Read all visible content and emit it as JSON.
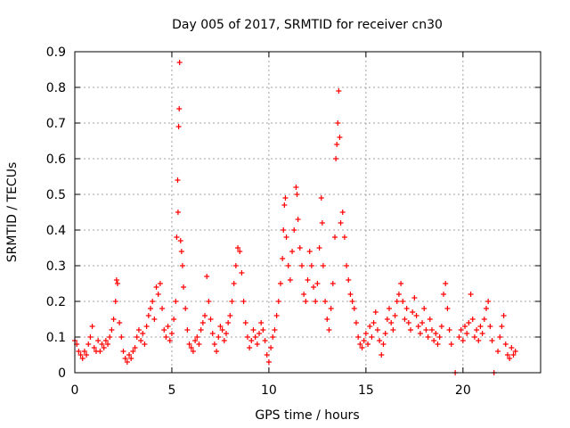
{
  "chart_data": {
    "type": "scatter",
    "title": "Day 005 of 2017, SRMTID for receiver cn30",
    "xlabel": "GPS time / hours",
    "ylabel": "SRMTID / TECUs",
    "xlim": [
      0,
      24
    ],
    "ylim": [
      0,
      0.9
    ],
    "x_ticks": [
      0,
      5,
      10,
      15,
      20
    ],
    "x_tick_labels": [
      "0",
      "5",
      "10",
      "15",
      "20"
    ],
    "y_ticks": [
      0,
      0.1,
      0.2,
      0.3,
      0.4,
      0.5,
      0.6,
      0.7,
      0.8,
      0.9
    ],
    "y_tick_labels": [
      "0",
      "0.1",
      "0.2",
      "0.3",
      "0.4",
      "0.5",
      "0.6",
      "0.7",
      "0.8",
      "0.9"
    ],
    "grid": true,
    "marker": "+",
    "color": "#ff0000",
    "series": [
      {
        "name": "SRMTID",
        "points": [
          [
            0.0,
            0.09
          ],
          [
            0.1,
            0.08
          ],
          [
            0.2,
            0.06
          ],
          [
            0.3,
            0.05
          ],
          [
            0.4,
            0.04
          ],
          [
            0.5,
            0.06
          ],
          [
            0.6,
            0.05
          ],
          [
            0.7,
            0.08
          ],
          [
            0.8,
            0.1
          ],
          [
            0.9,
            0.13
          ],
          [
            1.0,
            0.07
          ],
          [
            1.1,
            0.06
          ],
          [
            1.2,
            0.09
          ],
          [
            1.3,
            0.06
          ],
          [
            1.4,
            0.08
          ],
          [
            1.5,
            0.07
          ],
          [
            1.6,
            0.09
          ],
          [
            1.7,
            0.08
          ],
          [
            1.8,
            0.1
          ],
          [
            1.9,
            0.12
          ],
          [
            2.0,
            0.15
          ],
          [
            2.1,
            0.2
          ],
          [
            2.15,
            0.26
          ],
          [
            2.2,
            0.25
          ],
          [
            2.3,
            0.14
          ],
          [
            2.4,
            0.1
          ],
          [
            2.5,
            0.06
          ],
          [
            2.6,
            0.04
          ],
          [
            2.7,
            0.03
          ],
          [
            2.8,
            0.05
          ],
          [
            2.9,
            0.04
          ],
          [
            3.0,
            0.06
          ],
          [
            3.1,
            0.07
          ],
          [
            3.2,
            0.1
          ],
          [
            3.3,
            0.12
          ],
          [
            3.4,
            0.09
          ],
          [
            3.5,
            0.11
          ],
          [
            3.6,
            0.08
          ],
          [
            3.7,
            0.13
          ],
          [
            3.8,
            0.16
          ],
          [
            3.9,
            0.18
          ],
          [
            4.0,
            0.2
          ],
          [
            4.1,
            0.15
          ],
          [
            4.2,
            0.24
          ],
          [
            4.3,
            0.22
          ],
          [
            4.4,
            0.25
          ],
          [
            4.5,
            0.18
          ],
          [
            4.6,
            0.12
          ],
          [
            4.7,
            0.1
          ],
          [
            4.8,
            0.13
          ],
          [
            4.9,
            0.09
          ],
          [
            5.0,
            0.11
          ],
          [
            5.1,
            0.15
          ],
          [
            5.2,
            0.2
          ],
          [
            5.25,
            0.38
          ],
          [
            5.3,
            0.54
          ],
          [
            5.32,
            0.45
          ],
          [
            5.35,
            0.69
          ],
          [
            5.38,
            0.74
          ],
          [
            5.4,
            0.87
          ],
          [
            5.45,
            0.37
          ],
          [
            5.5,
            0.34
          ],
          [
            5.55,
            0.3
          ],
          [
            5.6,
            0.24
          ],
          [
            5.7,
            0.18
          ],
          [
            5.8,
            0.12
          ],
          [
            5.9,
            0.08
          ],
          [
            6.0,
            0.07
          ],
          [
            6.1,
            0.06
          ],
          [
            6.2,
            0.09
          ],
          [
            6.3,
            0.1
          ],
          [
            6.4,
            0.08
          ],
          [
            6.5,
            0.12
          ],
          [
            6.6,
            0.14
          ],
          [
            6.7,
            0.16
          ],
          [
            6.8,
            0.27
          ],
          [
            6.9,
            0.2
          ],
          [
            7.0,
            0.15
          ],
          [
            7.1,
            0.11
          ],
          [
            7.2,
            0.08
          ],
          [
            7.3,
            0.06
          ],
          [
            7.4,
            0.1
          ],
          [
            7.5,
            0.13
          ],
          [
            7.6,
            0.12
          ],
          [
            7.7,
            0.09
          ],
          [
            7.8,
            0.11
          ],
          [
            7.9,
            0.14
          ],
          [
            8.0,
            0.16
          ],
          [
            8.1,
            0.2
          ],
          [
            8.2,
            0.25
          ],
          [
            8.3,
            0.3
          ],
          [
            8.4,
            0.35
          ],
          [
            8.5,
            0.34
          ],
          [
            8.6,
            0.28
          ],
          [
            8.7,
            0.2
          ],
          [
            8.8,
            0.14
          ],
          [
            8.9,
            0.1
          ],
          [
            9.0,
            0.07
          ],
          [
            9.1,
            0.09
          ],
          [
            9.2,
            0.12
          ],
          [
            9.3,
            0.1
          ],
          [
            9.4,
            0.08
          ],
          [
            9.5,
            0.11
          ],
          [
            9.6,
            0.14
          ],
          [
            9.7,
            0.12
          ],
          [
            9.8,
            0.09
          ],
          [
            9.9,
            0.05
          ],
          [
            10.0,
            0.03
          ],
          [
            10.1,
            0.07
          ],
          [
            10.2,
            0.1
          ],
          [
            10.3,
            0.12
          ],
          [
            10.4,
            0.16
          ],
          [
            10.5,
            0.2
          ],
          [
            10.6,
            0.25
          ],
          [
            10.7,
            0.32
          ],
          [
            10.75,
            0.4
          ],
          [
            10.8,
            0.47
          ],
          [
            10.85,
            0.49
          ],
          [
            10.9,
            0.38
          ],
          [
            11.0,
            0.3
          ],
          [
            11.1,
            0.26
          ],
          [
            11.2,
            0.34
          ],
          [
            11.3,
            0.4
          ],
          [
            11.4,
            0.52
          ],
          [
            11.45,
            0.5
          ],
          [
            11.5,
            0.43
          ],
          [
            11.6,
            0.35
          ],
          [
            11.7,
            0.3
          ],
          [
            11.8,
            0.22
          ],
          [
            11.9,
            0.2
          ],
          [
            12.0,
            0.26
          ],
          [
            12.1,
            0.34
          ],
          [
            12.2,
            0.3
          ],
          [
            12.3,
            0.24
          ],
          [
            12.4,
            0.2
          ],
          [
            12.5,
            0.25
          ],
          [
            12.6,
            0.35
          ],
          [
            12.7,
            0.49
          ],
          [
            12.75,
            0.42
          ],
          [
            12.8,
            0.3
          ],
          [
            12.9,
            0.2
          ],
          [
            13.0,
            0.15
          ],
          [
            13.1,
            0.12
          ],
          [
            13.2,
            0.18
          ],
          [
            13.3,
            0.25
          ],
          [
            13.4,
            0.38
          ],
          [
            13.45,
            0.6
          ],
          [
            13.5,
            0.64
          ],
          [
            13.55,
            0.7
          ],
          [
            13.6,
            0.79
          ],
          [
            13.65,
            0.66
          ],
          [
            13.7,
            0.42
          ],
          [
            13.8,
            0.45
          ],
          [
            13.9,
            0.38
          ],
          [
            14.0,
            0.3
          ],
          [
            14.1,
            0.26
          ],
          [
            14.2,
            0.22
          ],
          [
            14.3,
            0.2
          ],
          [
            14.4,
            0.18
          ],
          [
            14.5,
            0.14
          ],
          [
            14.6,
            0.1
          ],
          [
            14.7,
            0.08
          ],
          [
            14.8,
            0.07
          ],
          [
            14.9,
            0.09
          ],
          [
            15.0,
            0.11
          ],
          [
            15.1,
            0.08
          ],
          [
            15.2,
            0.13
          ],
          [
            15.3,
            0.1
          ],
          [
            15.4,
            0.14
          ],
          [
            15.5,
            0.17
          ],
          [
            15.6,
            0.12
          ],
          [
            15.7,
            0.09
          ],
          [
            15.8,
            0.05
          ],
          [
            15.9,
            0.08
          ],
          [
            16.0,
            0.11
          ],
          [
            16.1,
            0.15
          ],
          [
            16.2,
            0.18
          ],
          [
            16.3,
            0.14
          ],
          [
            16.4,
            0.12
          ],
          [
            16.5,
            0.16
          ],
          [
            16.6,
            0.2
          ],
          [
            16.7,
            0.22
          ],
          [
            16.8,
            0.25
          ],
          [
            16.9,
            0.2
          ],
          [
            17.0,
            0.15
          ],
          [
            17.1,
            0.18
          ],
          [
            17.2,
            0.14
          ],
          [
            17.3,
            0.12
          ],
          [
            17.4,
            0.17
          ],
          [
            17.5,
            0.21
          ],
          [
            17.6,
            0.16
          ],
          [
            17.7,
            0.13
          ],
          [
            17.8,
            0.11
          ],
          [
            17.9,
            0.14
          ],
          [
            18.0,
            0.18
          ],
          [
            18.1,
            0.12
          ],
          [
            18.2,
            0.1
          ],
          [
            18.3,
            0.15
          ],
          [
            18.4,
            0.12
          ],
          [
            18.5,
            0.09
          ],
          [
            18.6,
            0.11
          ],
          [
            18.7,
            0.08
          ],
          [
            18.8,
            0.1
          ],
          [
            18.9,
            0.13
          ],
          [
            19.0,
            0.22
          ],
          [
            19.1,
            0.25
          ],
          [
            19.2,
            0.18
          ],
          [
            19.3,
            0.12
          ],
          [
            19.4,
            0.08
          ],
          [
            19.6,
            0.0
          ],
          [
            19.8,
            0.1
          ],
          [
            19.9,
            0.12
          ],
          [
            20.0,
            0.09
          ],
          [
            20.1,
            0.13
          ],
          [
            20.2,
            0.11
          ],
          [
            20.3,
            0.14
          ],
          [
            20.4,
            0.22
          ],
          [
            20.5,
            0.15
          ],
          [
            20.6,
            0.1
          ],
          [
            20.7,
            0.12
          ],
          [
            20.8,
            0.09
          ],
          [
            20.9,
            0.13
          ],
          [
            21.0,
            0.11
          ],
          [
            21.1,
            0.15
          ],
          [
            21.2,
            0.18
          ],
          [
            21.3,
            0.2
          ],
          [
            21.4,
            0.13
          ],
          [
            21.5,
            0.09
          ],
          [
            21.6,
            0.0
          ],
          [
            21.8,
            0.06
          ],
          [
            21.9,
            0.1
          ],
          [
            22.0,
            0.13
          ],
          [
            22.1,
            0.16
          ],
          [
            22.2,
            0.08
          ],
          [
            22.3,
            0.05
          ],
          [
            22.4,
            0.04
          ],
          [
            22.5,
            0.07
          ],
          [
            22.6,
            0.05
          ],
          [
            22.7,
            0.06
          ]
        ]
      }
    ]
  }
}
